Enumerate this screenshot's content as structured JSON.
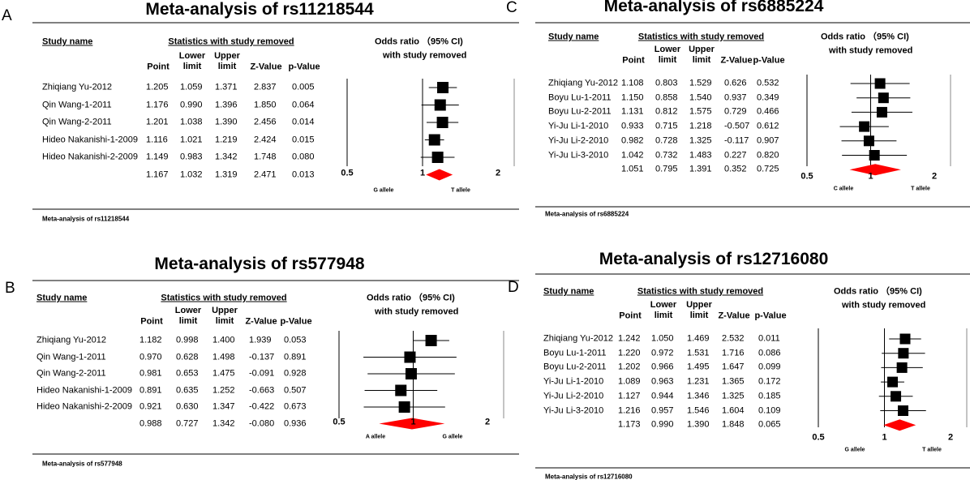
{
  "panels": [
    {
      "letter": "A",
      "title": "Meta-analysis of rs11218544",
      "footer": "Meta-analysis of rs11218544",
      "headers": {
        "study": "Study name",
        "stats": "Statistics with study removed",
        "point": "Point",
        "lower": "Lower limit",
        "upper": "Upper limit",
        "z": "Z-Value",
        "p": "p-Value"
      },
      "odds_header": [
        "Odds ratio （95% CI)",
        "with study removed"
      ],
      "alleles": [
        "G allele",
        "T allele"
      ],
      "xlim": [
        0.5,
        2
      ],
      "xticks": [
        0.5,
        1,
        2
      ],
      "log_scale": true,
      "rows": [
        {
          "study": "Zhiqiang Yu-2012",
          "point": "1.205",
          "lower": "1.059",
          "upper": "1.371",
          "z": "2.837",
          "p": "0.005"
        },
        {
          "study": "Qin Wang-1-2011",
          "point": "1.176",
          "lower": "0.990",
          "upper": "1.396",
          "z": "1.850",
          "p": "0.064"
        },
        {
          "study": "Qin Wang-2-2011",
          "point": "1.201",
          "lower": "1.038",
          "upper": "1.390",
          "z": "2.456",
          "p": "0.014"
        },
        {
          "study": "Hideo Nakanishi-1-2009",
          "point": "1.116",
          "lower": "1.021",
          "upper": "1.219",
          "z": "2.424",
          "p": "0.015"
        },
        {
          "study": "Hideo Nakanishi-2-2009",
          "point": "1.149",
          "lower": "0.983",
          "upper": "1.342",
          "z": "1.748",
          "p": "0.080"
        }
      ],
      "summary": {
        "point": "1.167",
        "lower": "1.032",
        "upper": "1.319",
        "z": "2.471",
        "p": "0.013"
      }
    },
    {
      "letter": "B",
      "title": "Meta-analysis of rs577948",
      "footer": "Meta-analysis of rs577948",
      "headers": {
        "study": "Study name",
        "stats": "Statistics with study removed",
        "point": "Point",
        "lower": "Lower limit",
        "upper": "Upper limit",
        "z": "Z-Value",
        "p": "p-Value"
      },
      "odds_header": [
        "Odds ratio （95% CI)",
        "with study removed"
      ],
      "alleles": [
        "A allele",
        "G allele"
      ],
      "xlim": [
        0.5,
        2
      ],
      "xticks": [
        0.5,
        1,
        2
      ],
      "log_scale": true,
      "rows": [
        {
          "study": "Zhiqiang Yu-2012",
          "point": "1.182",
          "lower": "0.998",
          "upper": "1.400",
          "z": "1.939",
          "p": "0.053"
        },
        {
          "study": "Qin Wang-1-2011",
          "point": "0.970",
          "lower": "0.628",
          "upper": "1.498",
          "z": "-0.137",
          "p": "0.891"
        },
        {
          "study": "Qin Wang-2-2011",
          "point": "0.981",
          "lower": "0.653",
          "upper": "1.475",
          "z": "-0.091",
          "p": "0.928"
        },
        {
          "study": "Hideo Nakanishi-1-2009",
          "point": "0.891",
          "lower": "0.635",
          "upper": "1.252",
          "z": "-0.663",
          "p": "0.507"
        },
        {
          "study": "Hideo Nakanishi-2-2009",
          "point": "0.921",
          "lower": "0.630",
          "upper": "1.347",
          "z": "-0.422",
          "p": "0.673"
        }
      ],
      "summary": {
        "point": "0.988",
        "lower": "0.727",
        "upper": "1.342",
        "z": "-0.080",
        "p": "0.936"
      }
    },
    {
      "letter": "C",
      "title": "Meta-analysis of rs6885224",
      "footer": "Meta-analysis of rs6885224",
      "headers": {
        "study": "Study name",
        "stats": "Statistics with study removed",
        "point": "Point",
        "lower": "Lower limit",
        "upper": "Upper limit",
        "z": "Z-Value",
        "p": "p-Value"
      },
      "odds_header": [
        "Odds ratio （95% CI)",
        "with study removed"
      ],
      "alleles": [
        "C allele",
        "T allele"
      ],
      "xlim": [
        0.5,
        2
      ],
      "xticks": [
        0.5,
        1,
        2
      ],
      "log_scale": true,
      "rows": [
        {
          "study": "Zhiqiang Yu-2012",
          "point": "1.108",
          "lower": "0.803",
          "upper": "1.529",
          "z": "0.626",
          "p": "0.532"
        },
        {
          "study": "Boyu Lu-1-2011",
          "point": "1.150",
          "lower": "0.858",
          "upper": "1.540",
          "z": "0.937",
          "p": "0.349"
        },
        {
          "study": "Boyu Lu-2-2011",
          "point": "1.131",
          "lower": "0.812",
          "upper": "1.575",
          "z": "0.729",
          "p": "0.466"
        },
        {
          "study": "Yi-Ju Li-1-2010",
          "point": "0.933",
          "lower": "0.715",
          "upper": "1.218",
          "z": "-0.507",
          "p": "0.612"
        },
        {
          "study": "Yi-Ju Li-2-2010",
          "point": "0.982",
          "lower": "0.728",
          "upper": "1.325",
          "z": "-0.117",
          "p": "0.907"
        },
        {
          "study": "Yi-Ju Li-3-2010",
          "point": "1.042",
          "lower": "0.732",
          "upper": "1.483",
          "z": "0.227",
          "p": "0.820"
        }
      ],
      "summary": {
        "point": "1.051",
        "lower": "0.795",
        "upper": "1.391",
        "z": "0.352",
        "p": "0.725"
      }
    },
    {
      "letter": "D",
      "title": "Meta-analysis of rs12716080",
      "footer": "Meta-analysis of rs12716080",
      "headers": {
        "study": "Study name",
        "stats": "Statistics with study removed",
        "point": "Point",
        "lower": "Lower limit",
        "upper": "Upper limit",
        "z": "Z-Value",
        "p": "p-Value"
      },
      "odds_header": [
        "Odds ratio （95% CI)",
        "with study removed"
      ],
      "alleles": [
        "G allele",
        "T allele"
      ],
      "xlim": [
        0.5,
        2
      ],
      "xticks": [
        0.5,
        1,
        2
      ],
      "log_scale": true,
      "rows": [
        {
          "study": "Zhiqiang Yu-2012",
          "point": "1.242",
          "lower": "1.050",
          "upper": "1.469",
          "z": "2.532",
          "p": "0.011"
        },
        {
          "study": "Boyu Lu-1-2011",
          "point": "1.220",
          "lower": "0.972",
          "upper": "1.531",
          "z": "1.716",
          "p": "0.086"
        },
        {
          "study": "Boyu Lu-2-2011",
          "point": "1.202",
          "lower": "0.966",
          "upper": "1.495",
          "z": "1.647",
          "p": "0.099"
        },
        {
          "study": "Yi-Ju Li-1-2010",
          "point": "1.089",
          "lower": "0.963",
          "upper": "1.231",
          "z": "1.365",
          "p": "0.172"
        },
        {
          "study": "Yi-Ju Li-2-2010",
          "point": "1.127",
          "lower": "0.944",
          "upper": "1.346",
          "z": "1.325",
          "p": "0.185"
        },
        {
          "study": "Yi-Ju Li-3-2010",
          "point": "1.216",
          "lower": "0.957",
          "upper": "1.546",
          "z": "1.604",
          "p": "0.109"
        }
      ],
      "summary": {
        "point": "1.173",
        "lower": "0.990",
        "upper": "1.390",
        "z": "1.848",
        "p": "0.065"
      }
    }
  ]
}
